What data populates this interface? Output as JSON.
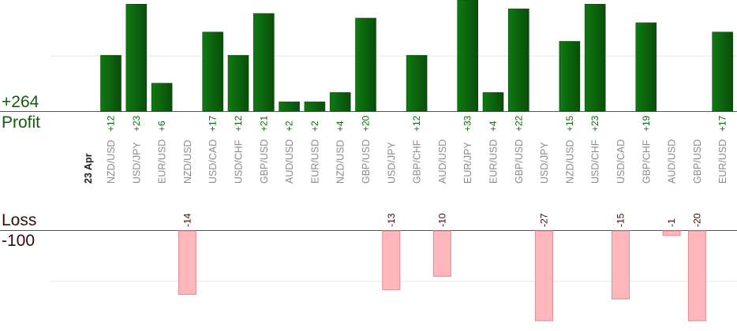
{
  "labels": {
    "profit_value": "+264",
    "profit_word": "Profit",
    "loss_word": "Loss",
    "loss_value": "-100",
    "date": "23 Apr"
  },
  "colors": {
    "profit_bar_dark": "#0a4d0a",
    "profit_bar_light": "#0e7a12",
    "profit_text": "#0b6b0b",
    "loss_bar_fill": "#ffb7bb",
    "loss_bar_stroke": "#e48a90",
    "loss_text": "#3a0808",
    "pair_text": "#8a8a8a",
    "gridline": "#e6e6e6",
    "axis": "#555555"
  },
  "chart_data": {
    "type": "bar",
    "categories": [
      "NZD/USD",
      "USD/JPY",
      "EUR/USD",
      "NZD/USD",
      "USD/CAD",
      "USD/CHF",
      "GBP/USD",
      "AUD/USD",
      "EUR/USD",
      "NZD/USD",
      "GBP/USD",
      "USD/JPY",
      "GBP/CHF",
      "AUD/USD",
      "EUR/JPY",
      "EUR/USD",
      "GBP/USD",
      "USD/JPY",
      "NZD/USD",
      "USD/CHF",
      "USD/CAD",
      "GBP/CHF",
      "AUD/USD",
      "GBP/USD",
      "EUR/USD"
    ],
    "profit_labels": [
      "+12",
      "+23",
      "+6",
      "",
      "+17",
      "+12",
      "+21",
      "+2",
      "+2",
      "+4",
      "+20",
      "",
      "+12",
      "",
      "+33",
      "+4",
      "+22",
      "",
      "+15",
      "+23",
      "",
      "+19",
      "",
      "",
      "+17"
    ],
    "loss_labels": [
      "",
      "",
      "",
      "-14",
      "",
      "",
      "",
      "",
      "",
      "",
      "",
      "-13",
      "",
      "-10",
      "",
      "",
      "",
      "-27",
      "",
      "",
      "-15",
      "",
      "-1",
      "-20",
      ""
    ],
    "series": [
      {
        "name": "Profit",
        "values": [
          12,
          23,
          6,
          null,
          17,
          12,
          21,
          2,
          2,
          4,
          20,
          null,
          12,
          null,
          33,
          4,
          22,
          null,
          15,
          23,
          null,
          19,
          null,
          null,
          17
        ]
      },
      {
        "name": "Loss",
        "values": [
          null,
          null,
          null,
          -14,
          null,
          null,
          null,
          null,
          null,
          null,
          null,
          -13,
          null,
          -10,
          null,
          null,
          null,
          -27,
          null,
          null,
          -15,
          null,
          -1,
          -20,
          null
        ]
      }
    ],
    "profit_ylim": [
      0,
      12
    ],
    "loss_ylim": [
      -20,
      0
    ],
    "legend": "none"
  }
}
